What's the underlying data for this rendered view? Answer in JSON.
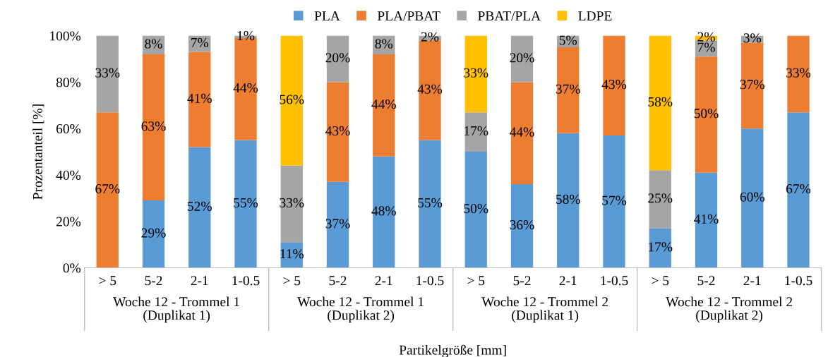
{
  "chart_data": {
    "type": "bar",
    "stacked": true,
    "xlabel": "Partikelgröße [mm]",
    "ylabel": "Prozentanteil [%]",
    "categories": [
      "> 5",
      "5-2",
      "2-1",
      "1-0.5",
      "> 5",
      "5-2",
      "2-1",
      "1-0.5",
      "> 5",
      "5-2",
      "2-1",
      "1-0.5",
      "> 5",
      "5-2",
      "2-1",
      "1-0.5"
    ],
    "annotations": [
      "Woche 12 - Trommel 1\n(Duplikat 1)",
      "Woche 12 - Trommel 1\n(Duplikat 2)",
      "Woche 12 - Trommel 2\n(Duplikat 1)",
      "Woche 12 - Trommel 2\n(Duplikat 2)"
    ],
    "series": [
      {
        "name": "PLA",
        "color": "#5b9bd5",
        "values": [
          0,
          29,
          52,
          55,
          11,
          37,
          48,
          55,
          50,
          36,
          58,
          57,
          17,
          41,
          60,
          67
        ],
        "value_labels": [
          null,
          "29%",
          "52%",
          "55%",
          "11%",
          "37%",
          "48%",
          "55%",
          "50%",
          "36%",
          "58%",
          "57%",
          "17%",
          "41%",
          "60%",
          "67%"
        ]
      },
      {
        "name": "PLA/PBAT",
        "color": "#ed7d31",
        "values": [
          67,
          63,
          41,
          44,
          0,
          43,
          44,
          43,
          0,
          44,
          37,
          43,
          0,
          50,
          37,
          33
        ],
        "value_labels": [
          "67%",
          "63%",
          "41%",
          "44%",
          null,
          "43%",
          "44%",
          "43%",
          null,
          "44%",
          "37%",
          "43%",
          null,
          "50%",
          "37%",
          "33%"
        ]
      },
      {
        "name": "PBAT/PLA",
        "color": "#a5a5a5",
        "values": [
          33,
          8,
          7,
          1,
          33,
          20,
          8,
          2,
          17,
          20,
          5,
          0,
          25,
          7,
          3,
          0
        ],
        "value_labels": [
          "33%",
          "8%",
          "7%",
          "1%",
          "33%",
          "20%",
          "8%",
          "2%",
          "17%",
          "20%",
          "5%",
          null,
          "25%",
          "7%",
          "3%",
          null
        ]
      },
      {
        "name": "LDPE",
        "color": "#ffc000",
        "values": [
          0,
          0,
          0,
          0,
          56,
          0,
          0,
          0,
          33,
          0,
          0,
          0,
          58,
          2,
          0,
          0
        ],
        "value_labels": [
          null,
          null,
          null,
          null,
          "56%",
          null,
          null,
          null,
          "33%",
          null,
          null,
          null,
          "58%",
          "2%",
          null,
          null
        ]
      }
    ],
    "ylim": [
      0,
      100
    ],
    "yticks": [
      {
        "value": 0,
        "label": "0%"
      },
      {
        "value": 20,
        "label": "20%"
      },
      {
        "value": 40,
        "label": "40%"
      },
      {
        "value": 60,
        "label": "60%"
      },
      {
        "value": 80,
        "label": "80%"
      },
      {
        "value": 100,
        "label": "100%"
      }
    ],
    "grid": false,
    "legend": "top"
  }
}
